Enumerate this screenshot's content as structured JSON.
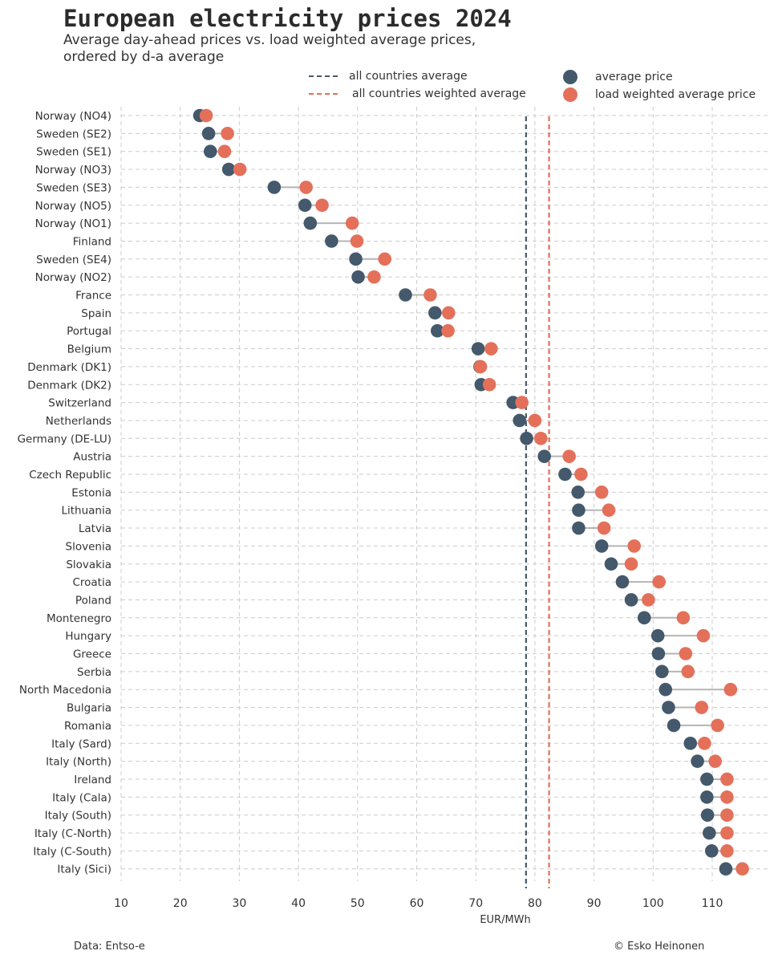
{
  "header": {
    "title": "European electricity prices 2024",
    "subtitle": "Average day-ahead prices vs. load weighted average prices, ordered by d-a average"
  },
  "legend": {
    "line1": "all countries average",
    "line2": "all countries weighted average",
    "dot1": "average price",
    "dot2": "load weighted average price"
  },
  "colors": {
    "average": "#44596b",
    "weighted": "#e4705a",
    "connector": "#b5b5b5",
    "grid": "#cccccc"
  },
  "chart_data": {
    "type": "dot-plot",
    "title": "European electricity prices 2024",
    "xlabel": "EUR/MWh",
    "ylabel": "",
    "xlim": [
      10,
      120
    ],
    "x_ticks": [
      10,
      20,
      30,
      40,
      50,
      60,
      70,
      80,
      90,
      100,
      110
    ],
    "grid": true,
    "all_countries_average": 78.5,
    "all_countries_weighted_average": 82.4,
    "categories": [
      "Norway (NO4)",
      "Sweden (SE2)",
      "Sweden (SE1)",
      "Norway (NO3)",
      "Sweden (SE3)",
      "Norway (NO5)",
      "Norway (NO1)",
      "Finland",
      "Sweden (SE4)",
      "Norway (NO2)",
      "France",
      "Spain",
      "Portugal",
      "Belgium",
      "Denmark (DK1)",
      "Denmark (DK2)",
      "Switzerland",
      "Netherlands",
      "Germany (DE-LU)",
      "Austria",
      "Czech Republic",
      "Estonia",
      "Lithuania",
      "Latvia",
      "Slovenia",
      "Slovakia",
      "Croatia",
      "Poland",
      "Montenegro",
      "Hungary",
      "Greece",
      "Serbia",
      "North Macedonia",
      "Bulgaria",
      "Romania",
      "Italy (Sard)",
      "Italy (North)",
      "Ireland",
      "Italy (Cala)",
      "Italy (South)",
      "Italy (C-North)",
      "Italy (C-South)",
      "Italy (Sici)"
    ],
    "series": [
      {
        "name": "average price",
        "values": [
          23.3,
          24.8,
          25.1,
          28.2,
          35.9,
          41.1,
          42.0,
          45.6,
          49.7,
          50.1,
          58.1,
          63.1,
          63.5,
          70.4,
          70.7,
          70.9,
          76.3,
          77.4,
          78.6,
          81.6,
          85.1,
          87.3,
          87.4,
          87.4,
          91.3,
          92.9,
          94.8,
          96.3,
          98.5,
          100.8,
          100.9,
          101.5,
          102.1,
          102.6,
          103.5,
          106.3,
          107.5,
          109.1,
          109.1,
          109.2,
          109.5,
          109.9,
          112.3
        ]
      },
      {
        "name": "load weighted average price",
        "values": [
          24.4,
          28.0,
          27.5,
          30.1,
          41.3,
          44.0,
          49.1,
          49.9,
          54.6,
          52.8,
          62.3,
          65.4,
          65.3,
          72.6,
          70.8,
          72.3,
          77.8,
          80.0,
          81.0,
          85.8,
          87.8,
          91.3,
          92.5,
          91.7,
          96.8,
          96.3,
          101.0,
          99.2,
          105.1,
          108.5,
          105.5,
          105.9,
          113.1,
          108.2,
          110.9,
          108.7,
          110.5,
          112.5,
          112.5,
          112.5,
          112.5,
          112.5,
          115.1
        ]
      }
    ]
  },
  "footer": {
    "source": "Data: Entso-e",
    "credit": "© Esko Heinonen"
  }
}
